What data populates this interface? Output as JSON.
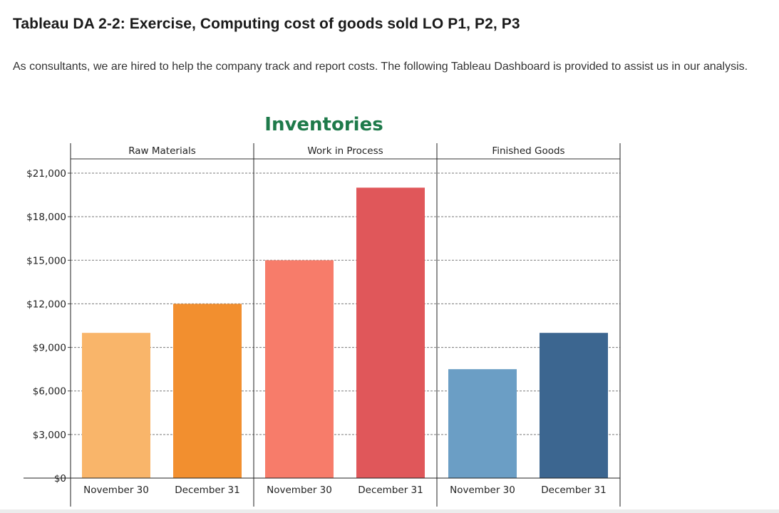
{
  "page": {
    "heading": "Tableau DA 2-2: Exercise, Computing cost of goods sold LO P1, P2, P3",
    "intro": "As consultants, we are hired to help the company track and report costs. The following Tableau Dashboard is provided to assist us in our analysis."
  },
  "chart_data": {
    "type": "bar",
    "title": "Inventories",
    "title_color": "#1e7a4a",
    "panels": [
      "Raw Materials",
      "Work in Process",
      "Finished Goods"
    ],
    "categories": [
      "November 30",
      "December 31"
    ],
    "ylim": [
      0,
      22000
    ],
    "yticks": [
      0,
      3000,
      6000,
      9000,
      12000,
      15000,
      18000,
      21000
    ],
    "ytick_labels": [
      "$0",
      "$3,000",
      "$6,000",
      "$9,000",
      "$12,000",
      "$15,000",
      "$18,000",
      "$21,000"
    ],
    "grid": true,
    "bars": [
      {
        "panel": "Raw Materials",
        "category": "November 30",
        "value": 10000,
        "color": "#f9b56a"
      },
      {
        "panel": "Raw Materials",
        "category": "December 31",
        "value": 12000,
        "color": "#f28f2f"
      },
      {
        "panel": "Work in Process",
        "category": "November 30",
        "value": 15000,
        "color": "#f77c6a"
      },
      {
        "panel": "Work in Process",
        "category": "December 31",
        "value": 20000,
        "color": "#e0575a"
      },
      {
        "panel": "Finished Goods",
        "category": "November 30",
        "value": 7500,
        "color": "#6b9ec5"
      },
      {
        "panel": "Finished Goods",
        "category": "December 31",
        "value": 10000,
        "color": "#3c6690"
      }
    ]
  }
}
